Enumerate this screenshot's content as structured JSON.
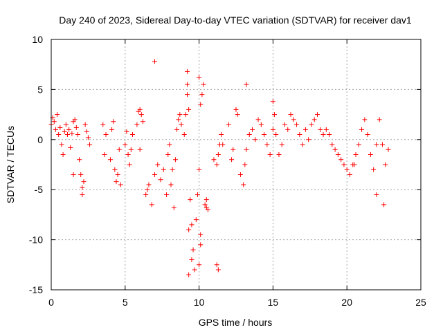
{
  "chart_data": {
    "type": "scatter",
    "title": "Day 240 of 2023, Sidereal Day-to-day VTEC variation (SDTVAR) for receiver dav1",
    "xlabel": "GPS time / hours",
    "ylabel": "SDTVAR / TECUs",
    "xlim": [
      0,
      25
    ],
    "ylim": [
      -15,
      10
    ],
    "xticks": [
      0,
      5,
      10,
      15,
      20,
      25
    ],
    "yticks": [
      10,
      5,
      0,
      -5,
      -10,
      -15
    ],
    "xtick_labels": [
      "0",
      "5",
      "10",
      "15",
      "20",
      "25"
    ],
    "ytick_labels": [
      "10",
      "5",
      "0",
      "-5",
      "-10",
      "-15"
    ],
    "grid": true,
    "marker": "+",
    "color": "#ff0000",
    "series": [
      {
        "name": "SDTVAR",
        "x": [
          0.0,
          0.1,
          0.2,
          0.3,
          0.4,
          0.5,
          0.6,
          0.7,
          0.8,
          0.9,
          1.0,
          1.1,
          1.2,
          1.3,
          1.4,
          1.5,
          1.6,
          1.7,
          1.8,
          1.9,
          2.0,
          2.1,
          2.2,
          2.3,
          2.4,
          2.5,
          2.6,
          3.5,
          3.6,
          3.7,
          4.0,
          4.1,
          4.2,
          4.3,
          4.4,
          4.5,
          4.6,
          4.7,
          5.0,
          5.1,
          5.2,
          5.3,
          5.4,
          5.5,
          5.8,
          5.9,
          6.0,
          6.1,
          6.2,
          6.4,
          6.5,
          6.6,
          6.8,
          7.0,
          7.2,
          7.4,
          7.6,
          7.8,
          7.9,
          8.0,
          8.1,
          8.2,
          8.4,
          8.5,
          8.6,
          8.7,
          8.8,
          9.0,
          9.1,
          9.2,
          9.3,
          9.5,
          9.6,
          9.7,
          9.8,
          9.9,
          10.0,
          10.1,
          10.2,
          10.3,
          10.4,
          10.5,
          10.6,
          11.0,
          11.2,
          11.3,
          11.4,
          11.5,
          11.6,
          12.0,
          12.2,
          12.3,
          12.5,
          12.6,
          12.8,
          13.0,
          13.1,
          13.2,
          13.4,
          13.6,
          13.8,
          14.0,
          14.2,
          14.4,
          14.6,
          14.8,
          15.0,
          15.1,
          15.2,
          15.4,
          15.6,
          15.8,
          16.0,
          16.2,
          16.4,
          16.6,
          16.8,
          17.0,
          17.2,
          17.4,
          17.6,
          17.8,
          18.0,
          18.2,
          18.4,
          18.6,
          18.8,
          19.0,
          19.2,
          19.4,
          19.6,
          19.8,
          20.0,
          20.2,
          20.4,
          20.6,
          20.8,
          21.0,
          21.2,
          21.4,
          21.6,
          21.8,
          22.0,
          22.2,
          22.4,
          22.6,
          22.8,
          7.0,
          9.2,
          9.3,
          10.0,
          10.1,
          10.0,
          9.2,
          9.4,
          9.5,
          10.5,
          11.2,
          11.3,
          13.2,
          22.0,
          22.5,
          9.3,
          10.1,
          6.0,
          15.0,
          20.5,
          8.3,
          2.1,
          1.5
        ],
        "y": [
          1.5,
          2.2,
          1.8,
          1.0,
          2.5,
          0.5,
          1.2,
          -0.5,
          -1.5,
          0.8,
          1.5,
          0.5,
          1.0,
          -0.8,
          0.6,
          1.8,
          2.0,
          1.2,
          0.5,
          -2.0,
          -3.5,
          -4.8,
          -4.2,
          1.5,
          0.8,
          0.2,
          -0.5,
          1.5,
          -1.5,
          0.5,
          -2.0,
          1.0,
          1.8,
          -3.0,
          -4.2,
          -3.5,
          -1.0,
          -4.5,
          -0.5,
          0.8,
          -1.5,
          -2.5,
          -1.0,
          0.5,
          1.5,
          2.8,
          3.0,
          2.5,
          1.8,
          -5.5,
          -5.0,
          -4.5,
          -6.5,
          -3.5,
          -2.5,
          -4.0,
          -3.0,
          -5.5,
          -1.5,
          -0.5,
          -4.5,
          -3.0,
          -2.0,
          1.0,
          2.0,
          2.5,
          1.5,
          0.5,
          2.5,
          5.5,
          3.0,
          -8.5,
          -11.0,
          -13.0,
          -8.0,
          -5.5,
          -3.0,
          3.5,
          4.5,
          5.5,
          -6.5,
          -6.0,
          -7.0,
          -2.0,
          -2.5,
          -1.5,
          -0.5,
          0.5,
          -0.5,
          1.5,
          -2.0,
          -1.0,
          3.0,
          2.5,
          -3.5,
          -4.5,
          -2.5,
          -1.0,
          0.5,
          1.0,
          0.0,
          2.0,
          1.5,
          0.5,
          -0.5,
          -1.5,
          1.0,
          2.5,
          0.5,
          -1.5,
          -0.5,
          1.5,
          1.0,
          2.5,
          2.0,
          1.5,
          0.5,
          -0.5,
          1.0,
          0.0,
          1.5,
          2.0,
          2.5,
          1.0,
          0.5,
          1.0,
          0.5,
          -0.5,
          -1.0,
          -1.5,
          -2.0,
          -2.5,
          -3.0,
          -3.5,
          -2.5,
          -1.5,
          -0.5,
          1.0,
          2.0,
          0.5,
          -1.5,
          -3.0,
          -0.5,
          2.0,
          -0.5,
          -2.5,
          -1.0,
          7.8,
          6.8,
          -13.5,
          -12.5,
          -10.5,
          6.2,
          4.5,
          -6.0,
          -12.0,
          -6.8,
          -12.5,
          -13.0,
          5.5,
          -5.5,
          -6.5,
          -9.0,
          -9.5,
          -1.0,
          3.8,
          -2.5,
          -6.8,
          -5.5,
          -3.5
        ]
      }
    ]
  }
}
